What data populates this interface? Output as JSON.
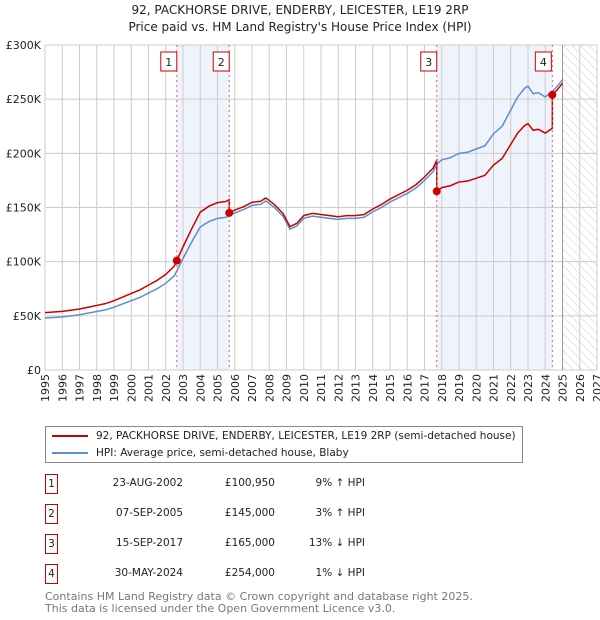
{
  "chart_data": {
    "type": "line",
    "title": "92, PACKHORSE DRIVE, ENDERBY, LEICESTER, LE19 2RP",
    "subtitle": "Price paid vs. HM Land Registry's House Price Index (HPI)",
    "xlim": [
      1995,
      2027
    ],
    "ylim": [
      0,
      300000
    ],
    "x_ticks": [
      "1995",
      "1996",
      "1997",
      "1998",
      "1999",
      "2000",
      "2001",
      "2002",
      "2003",
      "2004",
      "2005",
      "2006",
      "2007",
      "2008",
      "2009",
      "2010",
      "2011",
      "2012",
      "2013",
      "2014",
      "2015",
      "2016",
      "2017",
      "2018",
      "2019",
      "2020",
      "2021",
      "2022",
      "2023",
      "2024",
      "2025",
      "2026",
      "2027"
    ],
    "y_ticks": [
      {
        "v": 0,
        "label": "£0"
      },
      {
        "v": 50000,
        "label": "£50K"
      },
      {
        "v": 100000,
        "label": "£100K"
      },
      {
        "v": 150000,
        "label": "£150K"
      },
      {
        "v": 200000,
        "label": "£200K"
      },
      {
        "v": 250000,
        "label": "£250K"
      },
      {
        "v": 300000,
        "label": "£300K"
      }
    ],
    "grid": true,
    "forecast_from": 2025.0,
    "colors": {
      "property": "#cc0000",
      "hpi": "#5b8fd0",
      "shade": "#eef3fc",
      "marker_line": "#e06060"
    },
    "hpi_series": {
      "name": "HPI: Average price, semi-detached house, Blaby",
      "x": [
        1995,
        1995.5,
        1996,
        1996.5,
        1997,
        1997.5,
        1998,
        1998.5,
        1999,
        1999.5,
        2000,
        2000.5,
        2001,
        2001.5,
        2002,
        2002.5,
        2003,
        2003.5,
        2004,
        2004.5,
        2005,
        2005.5,
        2006,
        2006.5,
        2007,
        2007.5,
        2007.8,
        2008.3,
        2008.8,
        2009.2,
        2009.6,
        2010,
        2010.5,
        2011,
        2011.5,
        2012,
        2012.5,
        2013,
        2013.5,
        2014,
        2014.5,
        2015,
        2015.5,
        2016,
        2016.5,
        2017,
        2017.5,
        2017.7,
        2018,
        2018.5,
        2019,
        2019.5,
        2020,
        2020.5,
        2021,
        2021.5,
        2022,
        2022.4,
        2022.8,
        2023,
        2023.3,
        2023.6,
        2024,
        2024.4,
        2024.7,
        2025
      ],
      "y": [
        48000,
        48500,
        49000,
        50000,
        51000,
        52500,
        54000,
        55500,
        58000,
        61000,
        64000,
        67000,
        71000,
        75000,
        80000,
        87000,
        103000,
        118000,
        132000,
        137000,
        140000,
        141000,
        145000,
        148000,
        152000,
        153000,
        156000,
        150000,
        142000,
        130000,
        133000,
        140000,
        142000,
        141000,
        140000,
        139000,
        140000,
        140000,
        141000,
        146000,
        150000,
        155000,
        159000,
        163000,
        168000,
        175000,
        183000,
        190000,
        194000,
        196000,
        200000,
        201000,
        204000,
        207000,
        218000,
        225000,
        240000,
        252000,
        260000,
        262000,
        255000,
        256000,
        252000,
        257000,
        262000,
        268000
      ]
    },
    "property_series": {
      "name": "92, PACKHORSE DRIVE, ENDERBY, LEICESTER, LE19 2RP (semi-detached house)"
    },
    "sales": [
      {
        "n": "1",
        "x": 2002.64,
        "date": "23-AUG-2002",
        "value": 100950,
        "price": "£100,950",
        "hpi_diff": "9% ↑ HPI"
      },
      {
        "n": "2",
        "x": 2005.68,
        "date": "07-SEP-2005",
        "value": 145000,
        "price": "£145,000",
        "hpi_diff": "3% ↑ HPI"
      },
      {
        "n": "3",
        "x": 2017.71,
        "date": "15-SEP-2017",
        "value": 165000,
        "price": "£165,000",
        "hpi_diff": "13% ↓ HPI"
      },
      {
        "n": "4",
        "x": 2024.41,
        "date": "30-MAY-2024",
        "value": 254000,
        "price": "£254,000",
        "hpi_diff": "1% ↓ HPI"
      }
    ]
  },
  "footer": {
    "line1": "Contains HM Land Registry data © Crown copyright and database right 2025.",
    "line2": "This data is licensed under the Open Government Licence v3.0."
  }
}
